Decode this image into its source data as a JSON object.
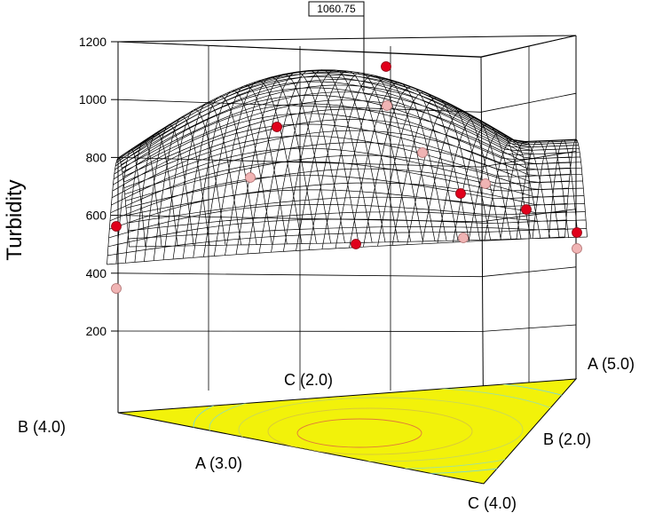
{
  "chart_data": {
    "type": "surface3d",
    "zlabel": "Turbidity",
    "zlim": [
      200,
      1200
    ],
    "z_ticks": [
      "200",
      "400",
      "600",
      "800",
      "1000",
      "1200"
    ],
    "max_callout": "1060.75",
    "mixture_vertices": {
      "front_left": "B (4.0)",
      "back": "C (2.0)",
      "right": "A (5.0)",
      "front": "A (3.0)",
      "right_front": "B (2.0)",
      "bottom": "C (4.0)"
    },
    "colors": {
      "surface_mesh": "#000000",
      "floor_fill": "#f2f20a",
      "points_above": "#e0001b",
      "points_below": "#f0b4b4"
    }
  }
}
